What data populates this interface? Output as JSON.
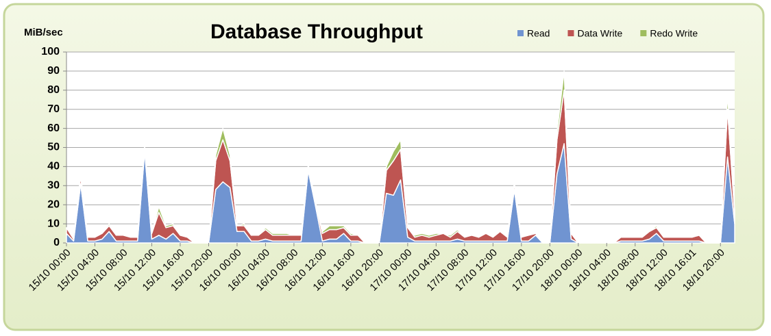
{
  "chart_data": {
    "type": "area",
    "stacked": true,
    "title": "Database Throughput",
    "y_label": "MiB/sec",
    "categories": [
      "15/10 00:00",
      null,
      null,
      null,
      "15/10 04:00",
      null,
      null,
      null,
      "15/10 08:00",
      null,
      null,
      null,
      "15/10 12:00",
      null,
      null,
      null,
      "15/10 16:00",
      null,
      null,
      null,
      "15/10 20:00",
      null,
      null,
      null,
      "16/10 00:00",
      null,
      null,
      null,
      "16/10 04:00",
      null,
      null,
      null,
      "16/10 08:00",
      null,
      null,
      null,
      "16/10 12:00",
      null,
      null,
      null,
      "16/10 16:00",
      null,
      null,
      null,
      "16/10 20:00",
      null,
      null,
      null,
      "17/10 00:00",
      null,
      null,
      null,
      "17/10 04:00",
      null,
      null,
      null,
      "17/10 08:00",
      null,
      null,
      null,
      "17/10 12:00",
      null,
      null,
      null,
      "17/10 16:00",
      null,
      null,
      null,
      "17/10 20:00",
      null,
      null,
      null,
      "18/10 00:00",
      null,
      null,
      null,
      "18/10 04:00",
      null,
      null,
      null,
      "18/10 08:00",
      null,
      null,
      null,
      "18/10 12:00",
      null,
      null,
      null,
      "18/10 16:01",
      null,
      null,
      null,
      "18/10 20:00",
      null,
      null
    ],
    "series": [
      {
        "name": "Read",
        "color": "#7094d1",
        "values": [
          5,
          1,
          31,
          1,
          1,
          2,
          6,
          1,
          1,
          1,
          1,
          48,
          2,
          4,
          2,
          5,
          1,
          1,
          0,
          0,
          0,
          28,
          32,
          29,
          6,
          6,
          1,
          1,
          2,
          1,
          1,
          1,
          1,
          1,
          38,
          20,
          1,
          2,
          2,
          5,
          1,
          1,
          0,
          0,
          0,
          26,
          25,
          33,
          3,
          1,
          1,
          1,
          1,
          1,
          1,
          2,
          1,
          1,
          1,
          1,
          1,
          1,
          1,
          28,
          1,
          1,
          4,
          0,
          0,
          36,
          52,
          2,
          0,
          0,
          0,
          0,
          0,
          0,
          1,
          1,
          1,
          1,
          2,
          5,
          1,
          1,
          1,
          1,
          1,
          1,
          0,
          0,
          0,
          45,
          10
        ]
      },
      {
        "name": "Data Write",
        "color": "#be5552",
        "values": [
          3,
          1,
          4,
          2,
          2,
          3,
          3,
          3,
          3,
          2,
          2,
          2,
          3,
          12,
          6,
          4,
          3,
          2,
          0,
          0,
          0,
          15,
          22,
          14,
          3,
          3,
          3,
          3,
          5,
          3,
          3,
          3,
          3,
          3,
          2,
          2,
          4,
          5,
          5,
          3,
          3,
          3,
          0,
          0,
          0,
          12,
          18,
          16,
          5,
          2,
          3,
          2,
          3,
          4,
          2,
          4,
          2,
          3,
          2,
          4,
          2,
          5,
          2,
          3,
          2,
          3,
          1,
          0,
          0,
          18,
          28,
          3,
          0,
          0,
          0,
          0,
          0,
          0,
          2,
          2,
          2,
          2,
          4,
          3,
          2,
          2,
          2,
          2,
          2,
          3,
          0,
          0,
          0,
          25,
          5
        ]
      },
      {
        "name": "Redo Write",
        "color": "#9fbd5e",
        "values": [
          0,
          0,
          1,
          0,
          0,
          0,
          1,
          0,
          0,
          0,
          0,
          1,
          0,
          3,
          1,
          1,
          0,
          0,
          0,
          0,
          0,
          3,
          6,
          3,
          0,
          1,
          0,
          0,
          1,
          1,
          1,
          1,
          0,
          0,
          1,
          0,
          1,
          2,
          2,
          1,
          1,
          0,
          0,
          0,
          0,
          2,
          5,
          5,
          0,
          1,
          1,
          1,
          1,
          0,
          1,
          1,
          0,
          0,
          0,
          0,
          0,
          0,
          0,
          1,
          0,
          0,
          0,
          0,
          0,
          4,
          10,
          0,
          0,
          0,
          0,
          0,
          0,
          0,
          0,
          0,
          0,
          0,
          0,
          1,
          0,
          0,
          0,
          0,
          0,
          0,
          0,
          0,
          0,
          8,
          2
        ]
      }
    ],
    "ylim": [
      0,
      100
    ],
    "yticks": [
      0,
      10,
      20,
      30,
      40,
      50,
      60,
      70,
      80,
      90,
      100
    ],
    "grid": true,
    "legend": "top-right"
  }
}
